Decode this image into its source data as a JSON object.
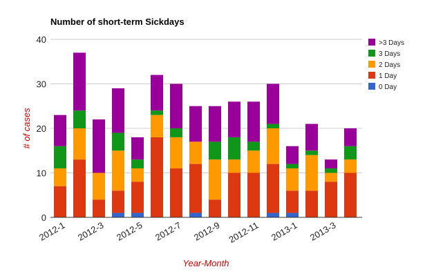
{
  "chart_data": {
    "type": "bar",
    "stacked": true,
    "title": "Number of short-term Sickdays",
    "xlabel": "Year-Month",
    "ylabel": "# of cases",
    "ylim": [
      0,
      40
    ],
    "yticks": [
      0,
      10,
      20,
      30,
      40
    ],
    "grid": true,
    "legend_position": "right",
    "categories": [
      "2012-1",
      "2012-2",
      "2012-3",
      "2012-4",
      "2012-5",
      "2012-6",
      "2012-7",
      "2012-8",
      "2012-9",
      "2012-10",
      "2012-11",
      "2012-12",
      "2013-1",
      "2013-2",
      "2013-3",
      "2013-4"
    ],
    "x_tick_labels": [
      "2012-1",
      "2012-3",
      "2012-5",
      "2012-7",
      "2012-9",
      "2012-11",
      "2013-1",
      "2013-3"
    ],
    "series": [
      {
        "name": "0 Day",
        "color": "#3366cc",
        "values": [
          0,
          0,
          0,
          1,
          1,
          0,
          0,
          1,
          0,
          0,
          0,
          1,
          1,
          0,
          0,
          0
        ]
      },
      {
        "name": "1 Day",
        "color": "#dc3912",
        "values": [
          7,
          13,
          4,
          5,
          7,
          18,
          11,
          11,
          4,
          10,
          10,
          11,
          5,
          6,
          8,
          10
        ]
      },
      {
        "name": "2 Days",
        "color": "#ff9900",
        "values": [
          4,
          7,
          6,
          9,
          3,
          5,
          7,
          5,
          9,
          3,
          5,
          8,
          5,
          8,
          2,
          3
        ]
      },
      {
        "name": "3 Days",
        "color": "#109618",
        "values": [
          5,
          4,
          0,
          4,
          2,
          1,
          2,
          0,
          4,
          5,
          2,
          1,
          1,
          1,
          1,
          3
        ]
      },
      {
        "name": ">3 Days",
        "color": "#990099",
        "values": [
          7,
          13,
          12,
          10,
          5,
          8,
          10,
          8,
          8,
          8,
          9,
          9,
          4,
          6,
          2,
          4
        ]
      }
    ],
    "colors": {
      "axis_title": "#cc0000",
      "gridline": "#cccccc",
      "baseline": "#333333"
    }
  }
}
